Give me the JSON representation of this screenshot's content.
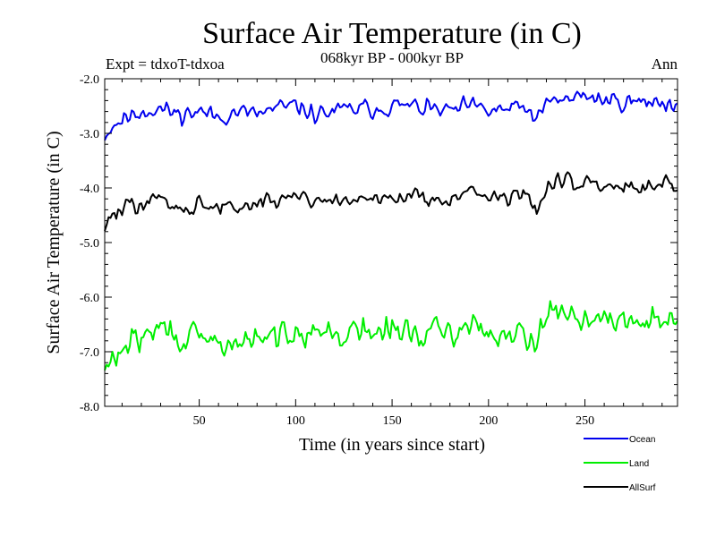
{
  "chart_data": {
    "type": "line",
    "title": "Surface Air Temperature (in C)",
    "subtitle_left": "Expt = tdxoT-tdxoa",
    "subtitle_center": "068kyr BP - 000kyr BP",
    "subtitle_right": "Ann",
    "xlabel": "Time (in years since start)",
    "ylabel": "Surface Air Temperature (in C)",
    "xlim": [
      1,
      298
    ],
    "ylim": [
      -8.0,
      -2.0
    ],
    "x_ticks": [
      50,
      100,
      150,
      200,
      250
    ],
    "y_ticks": [
      -8.0,
      -7.0,
      -6.0,
      -5.0,
      -4.0,
      -3.0,
      -2.0
    ],
    "y_tick_labels": [
      "-8.0",
      "-7.0",
      "-6.0",
      "-5.0",
      "-4.0",
      "-3.0",
      "-2.0"
    ],
    "grid": false,
    "legend_position": "bottom-right, below plot",
    "x_anchor_years": [
      1,
      5,
      10,
      20,
      30,
      40,
      50,
      60,
      70,
      80,
      90,
      100,
      110,
      120,
      130,
      140,
      150,
      160,
      170,
      180,
      190,
      200,
      210,
      220,
      225,
      230,
      235,
      240,
      250,
      260,
      270,
      280,
      290,
      298
    ],
    "series": [
      {
        "name": "Ocean",
        "color": "#0000ee",
        "anchors": [
          -3.05,
          -2.85,
          -2.75,
          -2.6,
          -2.55,
          -2.65,
          -2.6,
          -2.7,
          -2.6,
          -2.65,
          -2.55,
          -2.5,
          -2.65,
          -2.6,
          -2.55,
          -2.55,
          -2.5,
          -2.5,
          -2.55,
          -2.6,
          -2.5,
          -2.6,
          -2.55,
          -2.55,
          -2.75,
          -2.5,
          -2.35,
          -2.4,
          -2.3,
          -2.4,
          -2.4,
          -2.45,
          -2.4,
          -2.5
        ],
        "noise": 0.11,
        "seed": 11
      },
      {
        "name": "Land",
        "color": "#00ee00",
        "anchors": [
          -7.4,
          -7.15,
          -6.95,
          -6.75,
          -6.55,
          -6.75,
          -6.8,
          -6.85,
          -6.85,
          -6.8,
          -6.75,
          -6.55,
          -6.6,
          -6.7,
          -6.65,
          -6.65,
          -6.6,
          -6.65,
          -6.7,
          -6.6,
          -6.55,
          -6.6,
          -6.65,
          -6.6,
          -6.8,
          -6.4,
          -6.15,
          -6.3,
          -6.35,
          -6.45,
          -6.5,
          -6.45,
          -6.35,
          -6.45
        ],
        "noise": 0.17,
        "seed": 29
      },
      {
        "name": "AllSurf",
        "color": "#000000",
        "anchors": [
          -4.7,
          -4.5,
          -4.4,
          -4.3,
          -4.2,
          -4.35,
          -4.3,
          -4.35,
          -4.35,
          -4.3,
          -4.25,
          -4.1,
          -4.2,
          -4.25,
          -4.2,
          -4.2,
          -4.15,
          -4.15,
          -4.2,
          -4.15,
          -4.1,
          -4.15,
          -4.15,
          -4.15,
          -4.35,
          -4.05,
          -3.85,
          -3.95,
          -3.85,
          -3.95,
          -4.0,
          -3.95,
          -3.9,
          -4.0
        ],
        "noise": 0.11,
        "seed": 47
      }
    ]
  }
}
